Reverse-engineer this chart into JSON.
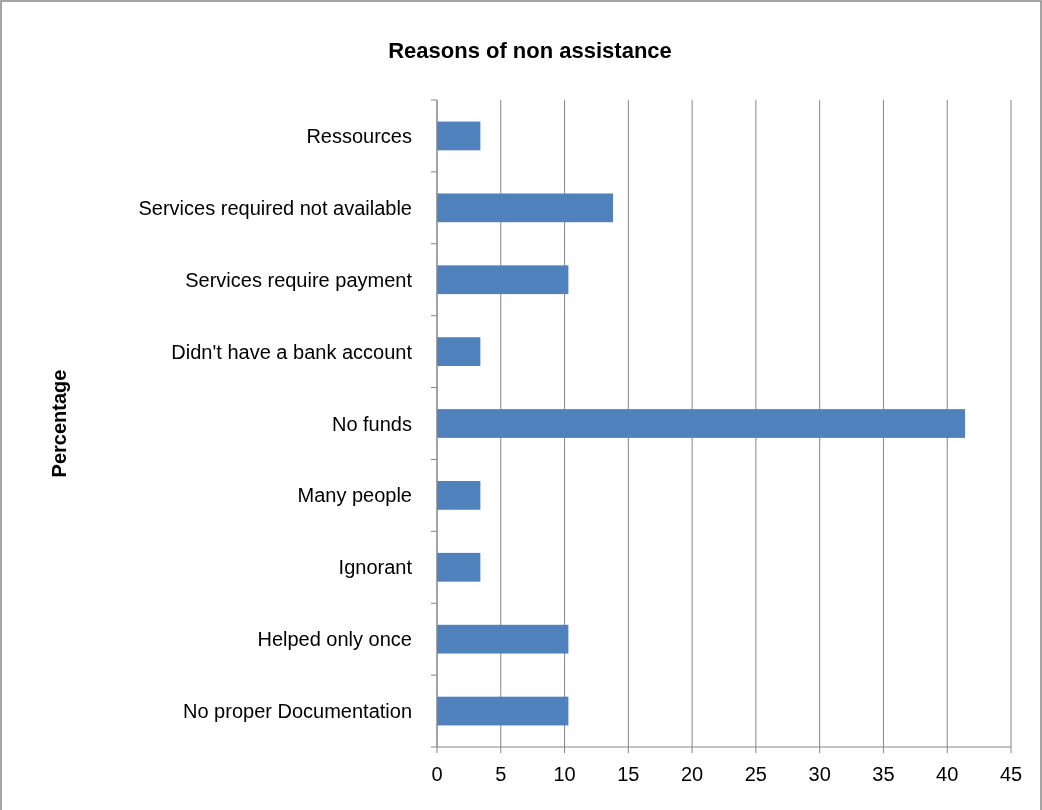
{
  "chart_data": {
    "type": "bar",
    "orientation": "horizontal",
    "title": "Reasons of non assistance",
    "ylabel": "Percentage",
    "categories": [
      "Ressources",
      "Services required not available",
      "Services require payment",
      "Didn't have a bank account",
      "No funds",
      "Many people",
      "Ignorant",
      "Helped only once",
      "No proper Documentation"
    ],
    "values": [
      3.4,
      13.8,
      10.3,
      3.4,
      41.4,
      3.4,
      3.4,
      10.3,
      10.3
    ],
    "color": "#4f81bd",
    "xlim": [
      0,
      45
    ],
    "xticks": [
      0,
      5,
      10,
      15,
      20,
      25,
      30,
      35,
      40,
      45
    ],
    "grid": "x"
  }
}
